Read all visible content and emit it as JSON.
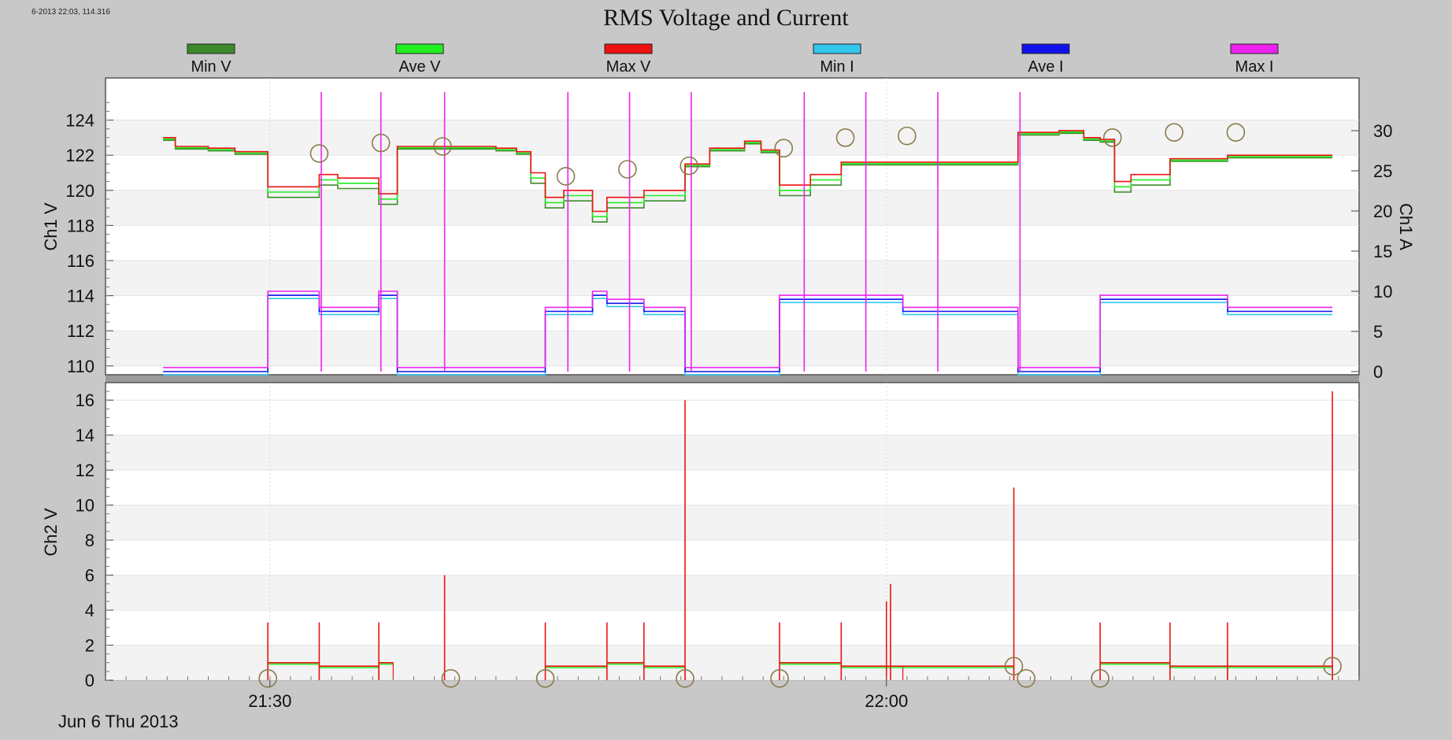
{
  "corner_readout": "6-2013 22:03, 114.316",
  "chart_data": {
    "type": "line",
    "title": "RMS Voltage and Current",
    "date_label": "Jun 6 Thu 2013",
    "x_tick_labels": [
      "21:30",
      "22:00"
    ],
    "legend": [
      {
        "name": "Min V",
        "color": "#3e8a2a"
      },
      {
        "name": "Ave V",
        "color": "#22ee22"
      },
      {
        "name": "Max V",
        "color": "#ee1111"
      },
      {
        "name": "Min I",
        "color": "#33c6ee"
      },
      {
        "name": "Ave I",
        "color": "#1111ee"
      },
      {
        "name": "Max I",
        "color": "#ee22ee"
      }
    ],
    "x_range_min": [
      1282,
      1343
    ],
    "x_ticks_min": [
      1290,
      1320
    ],
    "panels": [
      {
        "id": "ch1",
        "ylabel": "Ch1 V",
        "ylim": [
          109.5,
          126.4
        ],
        "yticks": [
          "110",
          "112",
          "114",
          "116",
          "118",
          "120",
          "122",
          "124"
        ],
        "y2label": "Ch1 A",
        "y2lim": [
          0,
          35
        ],
        "y2ticks": [
          "0",
          "5",
          "10",
          "15",
          "20",
          "25",
          "30"
        ],
        "events": [
          1292.5,
          1295.4,
          1298.5,
          1304.5,
          1307.5,
          1310.5,
          1316.0,
          1319.0,
          1322.5,
          1326.5
        ],
        "markers": [
          {
            "x": 1292.4,
            "y": 122.1
          },
          {
            "x": 1295.4,
            "y": 122.7
          },
          {
            "x": 1298.4,
            "y": 122.5
          },
          {
            "x": 1304.4,
            "y": 120.8
          },
          {
            "x": 1307.4,
            "y": 121.2
          },
          {
            "x": 1310.4,
            "y": 121.4
          },
          {
            "x": 1315.0,
            "y": 122.4
          },
          {
            "x": 1318.0,
            "y": 123.0
          },
          {
            "x": 1321.0,
            "y": 123.1
          },
          {
            "x": 1331.0,
            "y": 123.0
          },
          {
            "x": 1334.0,
            "y": 123.3
          },
          {
            "x": 1337.0,
            "y": 123.3
          }
        ],
        "voltage_segments": [
          {
            "x0": 1284.8,
            "x1": 1285.4,
            "v": 123.0
          },
          {
            "x0": 1285.4,
            "x1": 1287.0,
            "v": 122.5
          },
          {
            "x0": 1287.0,
            "x1": 1288.3,
            "v": 122.4
          },
          {
            "x0": 1288.3,
            "x1": 1289.9,
            "v": 122.2
          },
          {
            "x0": 1289.9,
            "x1": 1292.4,
            "v": 120.2
          },
          {
            "x0": 1292.4,
            "x1": 1293.3,
            "v": 120.9
          },
          {
            "x0": 1293.3,
            "x1": 1295.3,
            "v": 120.7
          },
          {
            "x0": 1295.3,
            "x1": 1296.2,
            "v": 119.8
          },
          {
            "x0": 1296.2,
            "x1": 1301.0,
            "v": 122.5
          },
          {
            "x0": 1301.0,
            "x1": 1302.0,
            "v": 122.4
          },
          {
            "x0": 1302.0,
            "x1": 1302.7,
            "v": 122.2
          },
          {
            "x0": 1302.7,
            "x1": 1303.4,
            "v": 121.0
          },
          {
            "x0": 1303.4,
            "x1": 1304.3,
            "v": 119.6
          },
          {
            "x0": 1304.3,
            "x1": 1305.7,
            "v": 120.0
          },
          {
            "x0": 1305.7,
            "x1": 1306.4,
            "v": 118.8
          },
          {
            "x0": 1306.4,
            "x1": 1308.2,
            "v": 119.6
          },
          {
            "x0": 1308.2,
            "x1": 1310.2,
            "v": 120.0
          },
          {
            "x0": 1310.2,
            "x1": 1311.4,
            "v": 121.5
          },
          {
            "x0": 1311.4,
            "x1": 1313.1,
            "v": 122.4
          },
          {
            "x0": 1313.1,
            "x1": 1313.9,
            "v": 122.8
          },
          {
            "x0": 1313.9,
            "x1": 1314.8,
            "v": 122.3
          },
          {
            "x0": 1314.8,
            "x1": 1316.3,
            "v": 120.3
          },
          {
            "x0": 1316.3,
            "x1": 1317.8,
            "v": 120.9
          },
          {
            "x0": 1317.8,
            "x1": 1320.8,
            "v": 121.6
          },
          {
            "x0": 1320.8,
            "x1": 1321.3,
            "v": 121.6
          },
          {
            "x0": 1321.3,
            "x1": 1326.4,
            "v": 121.6
          },
          {
            "x0": 1326.4,
            "x1": 1328.4,
            "v": 123.3
          },
          {
            "x0": 1328.4,
            "x1": 1329.6,
            "v": 123.4
          },
          {
            "x0": 1329.6,
            "x1": 1330.4,
            "v": 123.0
          },
          {
            "x0": 1330.4,
            "x1": 1331.1,
            "v": 122.9
          },
          {
            "x0": 1331.1,
            "x1": 1331.9,
            "v": 120.5
          },
          {
            "x0": 1331.9,
            "x1": 1333.8,
            "v": 120.9
          },
          {
            "x0": 1333.8,
            "x1": 1336.6,
            "v": 121.8
          },
          {
            "x0": 1336.6,
            "x1": 1337.4,
            "v": 122.0
          },
          {
            "x0": 1337.4,
            "x1": 1339.1,
            "v": 122.0
          },
          {
            "x0": 1339.1,
            "x1": 1340.5,
            "v": 122.0
          },
          {
            "x0": 1340.5,
            "x1": 1341.7,
            "v": 122.0
          }
        ],
        "current_segments": [
          {
            "x0": 1284.8,
            "x1": 1289.9,
            "a": 0.0
          },
          {
            "x0": 1289.9,
            "x1": 1292.4,
            "a": 9.5
          },
          {
            "x0": 1292.4,
            "x1": 1295.3,
            "a": 7.5
          },
          {
            "x0": 1295.3,
            "x1": 1296.2,
            "a": 9.5
          },
          {
            "x0": 1296.2,
            "x1": 1303.4,
            "a": 0.0
          },
          {
            "x0": 1303.4,
            "x1": 1305.7,
            "a": 7.5
          },
          {
            "x0": 1305.7,
            "x1": 1306.4,
            "a": 9.5
          },
          {
            "x0": 1306.4,
            "x1": 1308.2,
            "a": 8.5
          },
          {
            "x0": 1308.2,
            "x1": 1310.2,
            "a": 7.5
          },
          {
            "x0": 1310.2,
            "x1": 1314.8,
            "a": 0.0
          },
          {
            "x0": 1314.8,
            "x1": 1317.8,
            "a": 9.0
          },
          {
            "x0": 1317.8,
            "x1": 1320.8,
            "a": 9.0
          },
          {
            "x0": 1320.8,
            "x1": 1326.4,
            "a": 7.5
          },
          {
            "x0": 1326.4,
            "x1": 1330.4,
            "a": 0.0
          },
          {
            "x0": 1330.4,
            "x1": 1333.8,
            "a": 9.0
          },
          {
            "x0": 1333.8,
            "x1": 1336.6,
            "a": 9.0
          },
          {
            "x0": 1336.6,
            "x1": 1341.7,
            "a": 7.5
          }
        ]
      },
      {
        "id": "ch2",
        "ylabel": "Ch2 V",
        "ylim": [
          0,
          17
        ],
        "yticks": [
          "0",
          "2",
          "4",
          "6",
          "8",
          "10",
          "12",
          "14",
          "16"
        ],
        "events": [
          1289.9,
          1292.4,
          1295.3,
          1303.4,
          1306.4,
          1308.2,
          1314.8,
          1317.8,
          1322.5,
          1331.1,
          1334.0,
          1337.4
        ],
        "markers": [
          {
            "x": 1289.9,
            "y": 0.1
          },
          {
            "x": 1298.8,
            "y": 0.1
          },
          {
            "x": 1303.4,
            "y": 0.1
          },
          {
            "x": 1310.2,
            "y": 0.1
          },
          {
            "x": 1314.8,
            "y": 0.1
          },
          {
            "x": 1326.2,
            "y": 0.8
          },
          {
            "x": 1326.8,
            "y": 0.1
          },
          {
            "x": 1330.4,
            "y": 0.1
          },
          {
            "x": 1341.7,
            "y": 0.8
          }
        ],
        "segments": [
          {
            "x0": 1289.9,
            "x1": 1292.4,
            "v": 1.0
          },
          {
            "x0": 1292.4,
            "x1": 1295.3,
            "v": 0.8
          },
          {
            "x0": 1295.3,
            "x1": 1296.0,
            "v": 1.0
          },
          {
            "x0": 1303.4,
            "x1": 1306.4,
            "v": 0.8
          },
          {
            "x0": 1306.4,
            "x1": 1308.2,
            "v": 1.0
          },
          {
            "x0": 1308.2,
            "x1": 1310.2,
            "v": 0.8
          },
          {
            "x0": 1314.8,
            "x1": 1317.8,
            "v": 1.0
          },
          {
            "x0": 1317.8,
            "x1": 1320.8,
            "v": 0.8
          },
          {
            "x0": 1320.8,
            "x1": 1326.2,
            "v": 0.8
          },
          {
            "x0": 1330.4,
            "x1": 1333.8,
            "v": 1.0
          },
          {
            "x0": 1333.8,
            "x1": 1336.6,
            "v": 0.8
          },
          {
            "x0": 1336.6,
            "x1": 1341.7,
            "v": 0.8
          }
        ],
        "spikes": [
          {
            "x": 1289.9,
            "v": 3.3
          },
          {
            "x": 1292.4,
            "v": 3.3
          },
          {
            "x": 1295.3,
            "v": 3.3
          },
          {
            "x": 1298.5,
            "v": 6.0
          },
          {
            "x": 1303.4,
            "v": 3.3
          },
          {
            "x": 1306.4,
            "v": 3.3
          },
          {
            "x": 1308.2,
            "v": 3.3
          },
          {
            "x": 1310.2,
            "v": 16.0
          },
          {
            "x": 1314.8,
            "v": 3.3
          },
          {
            "x": 1317.8,
            "v": 3.3
          },
          {
            "x": 1320.0,
            "v": 4.5
          },
          {
            "x": 1320.2,
            "v": 5.5
          },
          {
            "x": 1326.2,
            "v": 11.0
          },
          {
            "x": 1330.4,
            "v": 3.3
          },
          {
            "x": 1333.8,
            "v": 3.3
          },
          {
            "x": 1336.6,
            "v": 3.3
          },
          {
            "x": 1341.7,
            "v": 16.5
          }
        ]
      }
    ]
  }
}
